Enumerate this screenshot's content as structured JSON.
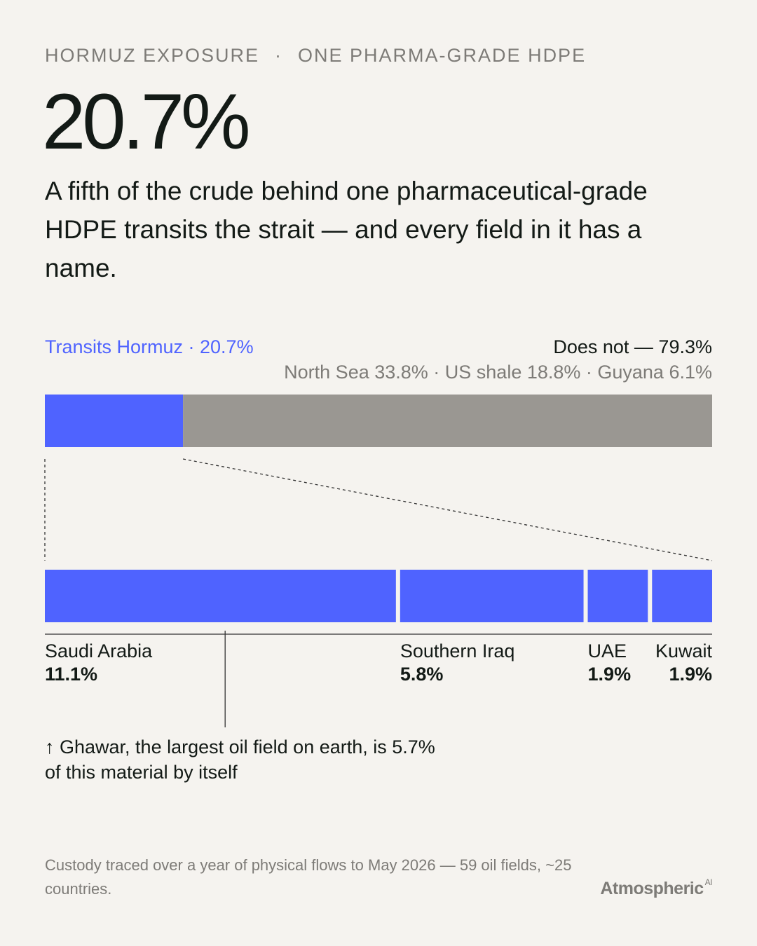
{
  "kicker": {
    "left": "HORMUZ EXPOSURE",
    "separator": "·",
    "right": "ONE PHARMA-GRADE HDPE"
  },
  "headline": "20.7%",
  "subhead": "A fifth of the crude behind one pharmaceutical-grade HDPE transits the strait — and every field in it has a name.",
  "colors": {
    "hormuz": "#4f63ff",
    "other": "#9a9792",
    "background": "#f5f3ef",
    "text": "#131a16",
    "muted": "#7d7b77"
  },
  "chart_data": [
    {
      "type": "bar",
      "orientation": "horizontal-stacked",
      "categories": [
        "Transits Hormuz",
        "Does not"
      ],
      "values": [
        20.7,
        79.3
      ],
      "labels": {
        "left": "Transits Hormuz · 20.7%",
        "right": "Does not — 79.3%",
        "right_detail": "North Sea 33.8% · US shale 18.8% · Guyana 6.1%"
      },
      "xlim": [
        0,
        100
      ]
    },
    {
      "type": "bar",
      "orientation": "horizontal-stacked",
      "categories": [
        "Saudi Arabia",
        "Southern Iraq",
        "UAE",
        "Kuwait"
      ],
      "values": [
        11.1,
        5.8,
        1.9,
        1.9
      ],
      "value_labels": [
        "11.1%",
        "5.8%",
        "1.9%",
        "1.9%"
      ],
      "xlim": [
        0,
        20.7
      ],
      "annotation": {
        "target": "Saudi Arabia",
        "value": 5.7,
        "text": "↑ Ghawar, the largest oil field on earth, is 5.7% of this material by itself"
      }
    }
  ],
  "footer": "Custody traced over a year of physical flows to May 2026 — 59 oil fields, ~25 countries.",
  "brand": {
    "name": "Atmospheric",
    "suffix": "AI"
  }
}
